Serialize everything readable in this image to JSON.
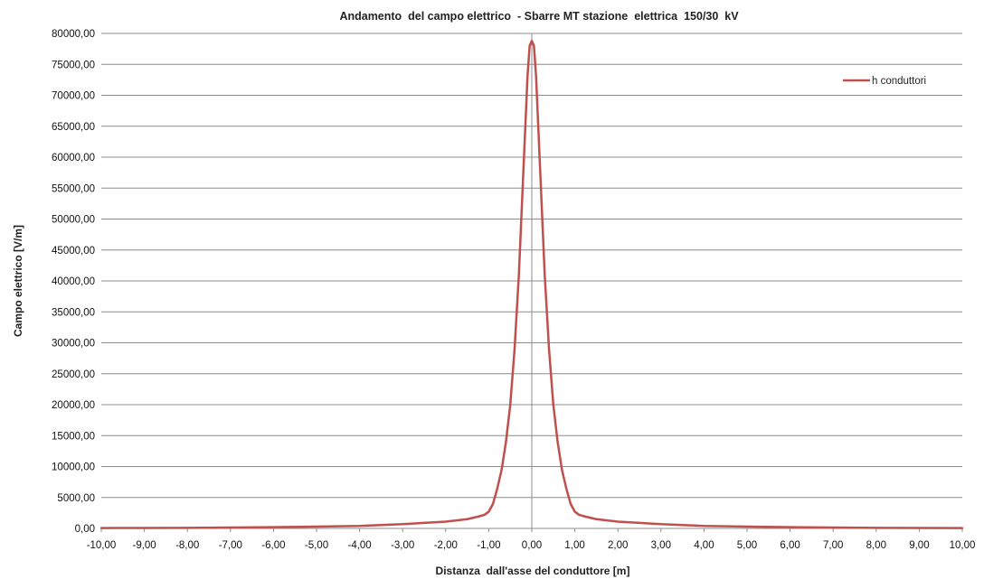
{
  "chart_data": {
    "type": "line",
    "title": "Andamento  del campo elettrico  - Sbarre MT stazione  elettrica  150/30  kV",
    "xlabel": "Distanza  dall'asse del conduttore [m]",
    "ylabel": "Campo elettrico [V/m]",
    "xlim": [
      -10,
      10
    ],
    "ylim": [
      0,
      80000
    ],
    "x_ticks": [
      "-10,00",
      "-9,00",
      "-8,00",
      "-7,00",
      "-6,00",
      "-5,00",
      "-4,00",
      "-3,00",
      "-2,00",
      "-1,00",
      "0,00",
      "1,00",
      "2,00",
      "3,00",
      "4,00",
      "5,00",
      "6,00",
      "7,00",
      "8,00",
      "9,00",
      "10,00"
    ],
    "y_ticks": [
      "0,00",
      "5000,00",
      "10000,00",
      "15000,00",
      "20000,00",
      "25000,00",
      "30000,00",
      "35000,00",
      "40000,00",
      "45000,00",
      "50000,00",
      "55000,00",
      "60000,00",
      "65000,00",
      "70000,00",
      "75000,00",
      "80000,00"
    ],
    "grid": "horizontal",
    "legend_position": "top-right",
    "series": [
      {
        "name": "h conduttori",
        "color": "#c0504d",
        "x": [
          -10,
          -9,
          -8,
          -7,
          -6,
          -5,
          -4,
          -3,
          -2.5,
          -2,
          -1.75,
          -1.5,
          -1.25,
          -1.1,
          -1,
          -0.9,
          -0.8,
          -0.7,
          -0.6,
          -0.5,
          -0.4,
          -0.3,
          -0.2,
          -0.1,
          -0.05,
          0,
          0.05,
          0.1,
          0.2,
          0.3,
          0.4,
          0.5,
          0.6,
          0.7,
          0.8,
          0.9,
          1,
          1.1,
          1.25,
          1.5,
          1.75,
          2,
          2.5,
          3,
          4,
          5,
          6,
          7,
          8,
          9,
          10
        ],
        "y": [
          60,
          80,
          100,
          140,
          200,
          300,
          400,
          700,
          900,
          1100,
          1300,
          1500,
          1900,
          2200,
          2700,
          4000,
          6500,
          9500,
          14000,
          20000,
          29000,
          41000,
          57000,
          73000,
          78000,
          78800,
          78000,
          73000,
          57000,
          41000,
          29000,
          20000,
          14000,
          9500,
          6500,
          4000,
          2700,
          2200,
          1900,
          1500,
          1300,
          1100,
          900,
          700,
          400,
          300,
          200,
          140,
          100,
          80,
          60
        ]
      }
    ]
  }
}
